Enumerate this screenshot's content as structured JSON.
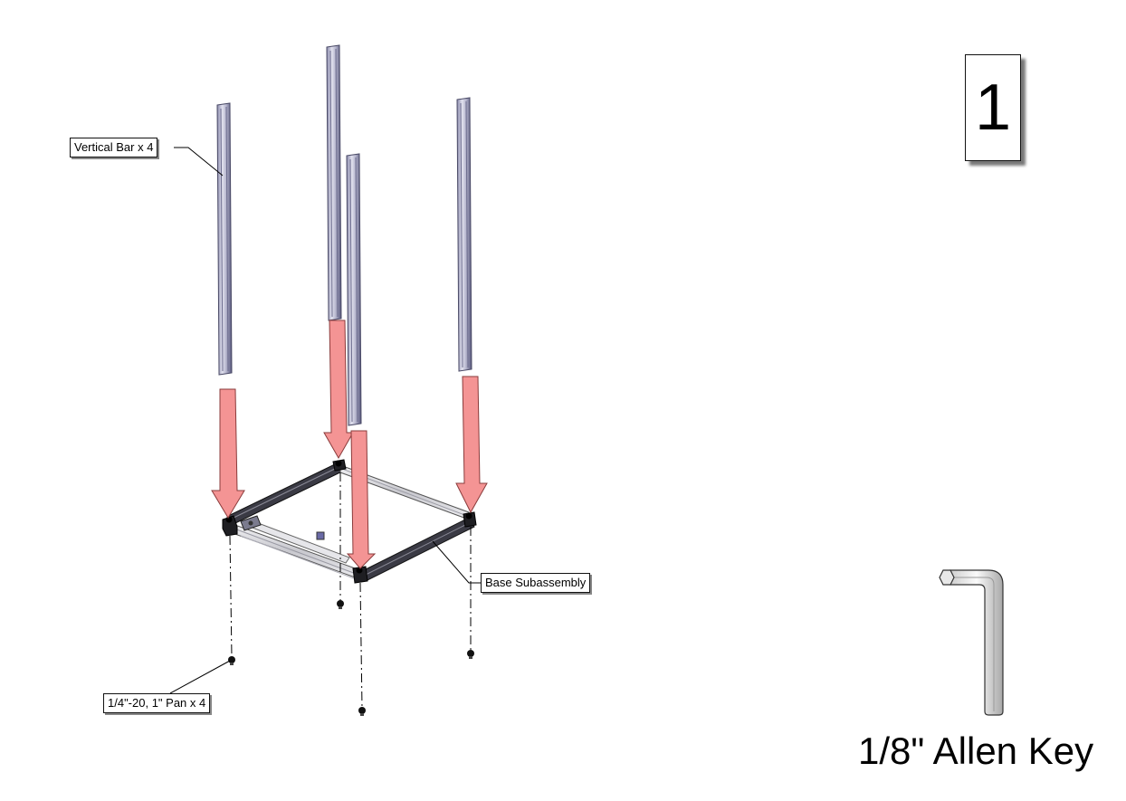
{
  "step": {
    "number": "1"
  },
  "callouts": {
    "vertical_bar": "Vertical Bar x 4",
    "base_subassembly": "Base Subassembly",
    "screws": "1/4\"-20, 1\" Pan x 4"
  },
  "tool": {
    "label": "1/8\" Allen Key",
    "icon": "allen-key-icon"
  },
  "colors": {
    "arrow_fill": "#f49494",
    "arrow_stroke": "#8a3b3b",
    "bar_light": "#d6d6e6",
    "bar_dark": "#55557a",
    "frame_dark": "#3a3a44",
    "frame_light": "#d8d8de"
  }
}
